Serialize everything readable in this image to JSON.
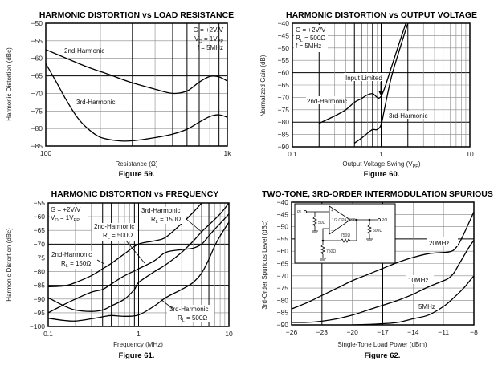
{
  "chart_data": [
    {
      "id": "fig59",
      "type": "line",
      "title": "HARMONIC DISTORTION vs LOAD RESISTANCE",
      "caption": "Figure 59.",
      "xlabel": "Resistance (Ω)",
      "ylabel": "Harmonic Distortion (dBc)",
      "xscale": "log",
      "xlim": [
        100,
        1000
      ],
      "ylim": [
        -85,
        -50
      ],
      "xticks": [
        {
          "v": 100,
          "label": "100"
        },
        {
          "v": 1000,
          "label": "1k"
        }
      ],
      "yticks": [
        -50,
        -55,
        -60,
        -65,
        -70,
        -75,
        -80,
        -85
      ],
      "ytick_labels": [
        "-50",
        "-55",
        "-60",
        "-65",
        "-70",
        "-75",
        "-80",
        "-85"
      ],
      "conditions": [
        "G = +2V/V",
        "VO = 1VPP",
        "f = 5MHz"
      ],
      "series": [
        {
          "name": "2nd-Harmonic",
          "label": "2nd-Harmonic",
          "x": [
            100,
            130,
            170,
            220,
            300,
            400,
            500,
            600,
            700,
            800,
            900,
            1000
          ],
          "y": [
            -57.5,
            -60,
            -62.5,
            -64.5,
            -67,
            -68.8,
            -70,
            -69.3,
            -66.8,
            -65.2,
            -65.3,
            -66.5
          ]
        },
        {
          "name": "3rd-Harmonic",
          "label": "3rd-Harmonic",
          "x": [
            100,
            115,
            130,
            150,
            170,
            200,
            250,
            300,
            400,
            500,
            600,
            700,
            800,
            900,
            1000
          ],
          "y": [
            -61.5,
            -67,
            -72,
            -77,
            -80,
            -82.5,
            -83.5,
            -83.5,
            -82.6,
            -81.6,
            -80.2,
            -78.2,
            -76.6,
            -76.1,
            -76.8
          ]
        }
      ]
    },
    {
      "id": "fig60",
      "type": "line",
      "title": "HARMONIC DISTORTION vs OUTPUT VOLTAGE",
      "caption": "Figure 60.",
      "xlabel": "Output Voltage Swing (VPP)",
      "ylabel": "Normalized Gain (dB)",
      "xscale": "log",
      "xlim": [
        0.1,
        10
      ],
      "ylim": [
        -90,
        -40
      ],
      "xticks": [
        {
          "v": 0.1,
          "label": "0.1"
        },
        {
          "v": 1,
          "label": "1"
        },
        {
          "v": 10,
          "label": "10"
        }
      ],
      "yticks": [
        -40,
        -45,
        -50,
        -55,
        -60,
        -65,
        -70,
        -75,
        -80,
        -85,
        -90
      ],
      "ytick_labels": [
        "-40",
        "-45",
        "-50",
        "-55",
        "-60",
        "-65",
        "-70",
        "-75",
        "-80",
        "-85",
        "-90"
      ],
      "conditions": [
        "G = +2V/V",
        "RL = 500Ω",
        "f = 5MHz"
      ],
      "annotations": [
        "Input Limited"
      ],
      "series": [
        {
          "name": "2nd-Harmonic",
          "label": "2nd-Harmonic",
          "x": [
            0.2,
            0.3,
            0.4,
            0.5,
            0.6,
            0.7,
            0.8,
            0.87,
            0.93,
            1.0,
            1.1,
            1.3,
            1.6,
            1.9
          ],
          "y": [
            -80.5,
            -77.5,
            -75,
            -72,
            -70.5,
            -69,
            -68.5,
            -69.5,
            -70.3,
            -69.5,
            -66,
            -58,
            -48,
            -40
          ]
        },
        {
          "name": "3rd-Harmonic",
          "label": "3rd-Harmonic",
          "x": [
            0.5,
            0.6,
            0.7,
            0.8,
            0.9,
            1.0,
            1.1,
            1.3,
            1.6,
            2.0
          ],
          "y": [
            -88.5,
            -86.5,
            -84.5,
            -83,
            -83,
            -81,
            -74,
            -62,
            -51,
            -40
          ]
        }
      ]
    },
    {
      "id": "fig61",
      "type": "line",
      "title": "HARMONIC DISTORTION vs FREQUENCY",
      "caption": "Figure 61.",
      "xlabel": "Frequency (MHz)",
      "ylabel": "Harmonic Distortion (dBc)",
      "xscale": "log",
      "xlim": [
        0.1,
        10
      ],
      "ylim": [
        -100,
        -55
      ],
      "xticks": [
        {
          "v": 0.1,
          "label": "0.1"
        },
        {
          "v": 1,
          "label": "1"
        },
        {
          "v": 10,
          "label": "10"
        }
      ],
      "yticks": [
        -55,
        -60,
        -65,
        -70,
        -75,
        -80,
        -85,
        -90,
        -95,
        -100
      ],
      "ytick_labels": [
        "-55",
        "-60",
        "-65",
        "-70",
        "-75",
        "-80",
        "-85",
        "-90",
        "-95",
        "-100"
      ],
      "conditions": [
        "G = +2V/V",
        "VO = 1VPP"
      ],
      "series": [
        {
          "name": "2nd-Harmonic RL=150Ω",
          "label": "2nd-Harmonic",
          "sublabel": "RL = 150Ω",
          "x": [
            0.1,
            0.15,
            0.2,
            0.3,
            0.4,
            0.5,
            0.7,
            1.0,
            1.5,
            2,
            3,
            4,
            5
          ],
          "y": [
            -85.5,
            -85.2,
            -84,
            -81.5,
            -79,
            -77,
            -73.5,
            -70,
            -68.8,
            -67.5,
            -62.5,
            -58.5,
            -55
          ]
        },
        {
          "name": "2nd-Harmonic RL=500Ω",
          "label": "2nd-Harmonic",
          "sublabel": "RL = 500Ω",
          "x": [
            0.1,
            0.15,
            0.2,
            0.3,
            0.4,
            0.5,
            0.7,
            1.0,
            1.5,
            2,
            3,
            4,
            5,
            6,
            7,
            8,
            10
          ],
          "y": [
            -95,
            -92,
            -90,
            -87.5,
            -86.5,
            -84.5,
            -81.5,
            -79,
            -76,
            -73,
            -72,
            -71.5,
            -70,
            -67,
            -64.5,
            -62.5,
            -59
          ]
        },
        {
          "name": "3rd-Harmonic RL=150Ω",
          "label": "3rd-Harmonic",
          "sublabel": "RL = 150Ω",
          "x": [
            0.1,
            0.15,
            0.2,
            0.3,
            0.4,
            0.5,
            0.7,
            0.9,
            1.0,
            1.5,
            2,
            3,
            4,
            5,
            6,
            8,
            10
          ],
          "y": [
            -89.5,
            -92.5,
            -94,
            -94.5,
            -94,
            -92.5,
            -90,
            -86.5,
            -84,
            -80,
            -77.5,
            -73,
            -69,
            -65.5,
            -63,
            -59,
            -55
          ]
        },
        {
          "name": "3rd-Harmonic RL=500Ω",
          "label": "3rd-Harmonic",
          "sublabel": "RL = 500Ω",
          "x": [
            0.1,
            0.15,
            0.2,
            0.3,
            0.4,
            0.5,
            0.7,
            1.0,
            1.5,
            2,
            3,
            4,
            5,
            6,
            7,
            8,
            10
          ],
          "y": [
            -97,
            -97.8,
            -98,
            -97.2,
            -96.5,
            -96,
            -96.3,
            -95.8,
            -92.5,
            -89.5,
            -86.5,
            -84,
            -80.5,
            -75.5,
            -70.5,
            -67,
            -62
          ]
        }
      ]
    },
    {
      "id": "fig62",
      "type": "line",
      "title": "TWO-TONE, 3RD-ORDER INTERMODULATION SPURIOUS",
      "caption": "Figure 62.",
      "xlabel": "Single-Tone Load Power (dBm)",
      "ylabel": "3rd-Order Spurious Level (dBc)",
      "xscale": "linear",
      "xlim": [
        -26,
        -8
      ],
      "ylim": [
        -90,
        -40
      ],
      "xticks": [
        {
          "v": -26,
          "label": "-26"
        },
        {
          "v": -23,
          "label": "-23"
        },
        {
          "v": -20,
          "label": "-20"
        },
        {
          "v": -17,
          "label": "-17"
        },
        {
          "v": -14,
          "label": "-14"
        },
        {
          "v": -11,
          "label": "-11"
        },
        {
          "v": -8,
          "label": "-8"
        }
      ],
      "yticks": [
        -40,
        -45,
        -50,
        -55,
        -60,
        -65,
        -70,
        -75,
        -80,
        -85,
        -90
      ],
      "ytick_labels": [
        "-40",
        "-45",
        "-50",
        "-55",
        "-60",
        "-65",
        "-70",
        "-75",
        "-80",
        "-85",
        "-90"
      ],
      "inset": {
        "input_label": "PI",
        "output_label": "PO",
        "amp_label": "1/2 OPA2690",
        "r_in": "50Ω",
        "r_f": "750Ω",
        "r_g": "750Ω",
        "r_load": "500Ω"
      },
      "series": [
        {
          "name": "20MHz",
          "label": "20MHz",
          "x": [
            -26,
            -24.5,
            -23,
            -21.5,
            -20,
            -18.5,
            -17,
            -15.5,
            -14,
            -12.5,
            -11,
            -10.5,
            -10,
            -9.5,
            -9,
            -8.5,
            -8
          ],
          "y": [
            -83.5,
            -81,
            -78,
            -75,
            -72,
            -69.5,
            -67,
            -64.5,
            -62.5,
            -61,
            -60.5,
            -60.3,
            -59.5,
            -57,
            -53,
            -48.5,
            -44
          ]
        },
        {
          "name": "10MHz",
          "label": "10MHz",
          "x": [
            -26,
            -24.5,
            -23,
            -21.5,
            -20,
            -18.5,
            -17,
            -15.5,
            -14,
            -12.5,
            -11,
            -10.5,
            -10,
            -9.5,
            -9,
            -8.5,
            -8
          ],
          "y": [
            -89,
            -89,
            -88.5,
            -87.5,
            -86,
            -84,
            -82,
            -80,
            -77.5,
            -74.5,
            -72,
            -71,
            -69,
            -65.5,
            -62,
            -58.5,
            -55.5
          ]
        },
        {
          "name": "5MHz",
          "label": "5MHz",
          "x": [
            -20,
            -18.5,
            -17,
            -15.5,
            -14,
            -12.5,
            -11,
            -10,
            -9,
            -8.5,
            -8
          ],
          "y": [
            -90,
            -89.8,
            -89.5,
            -89,
            -87.5,
            -86,
            -82.5,
            -79,
            -75,
            -72.5,
            -70
          ]
        }
      ]
    }
  ]
}
